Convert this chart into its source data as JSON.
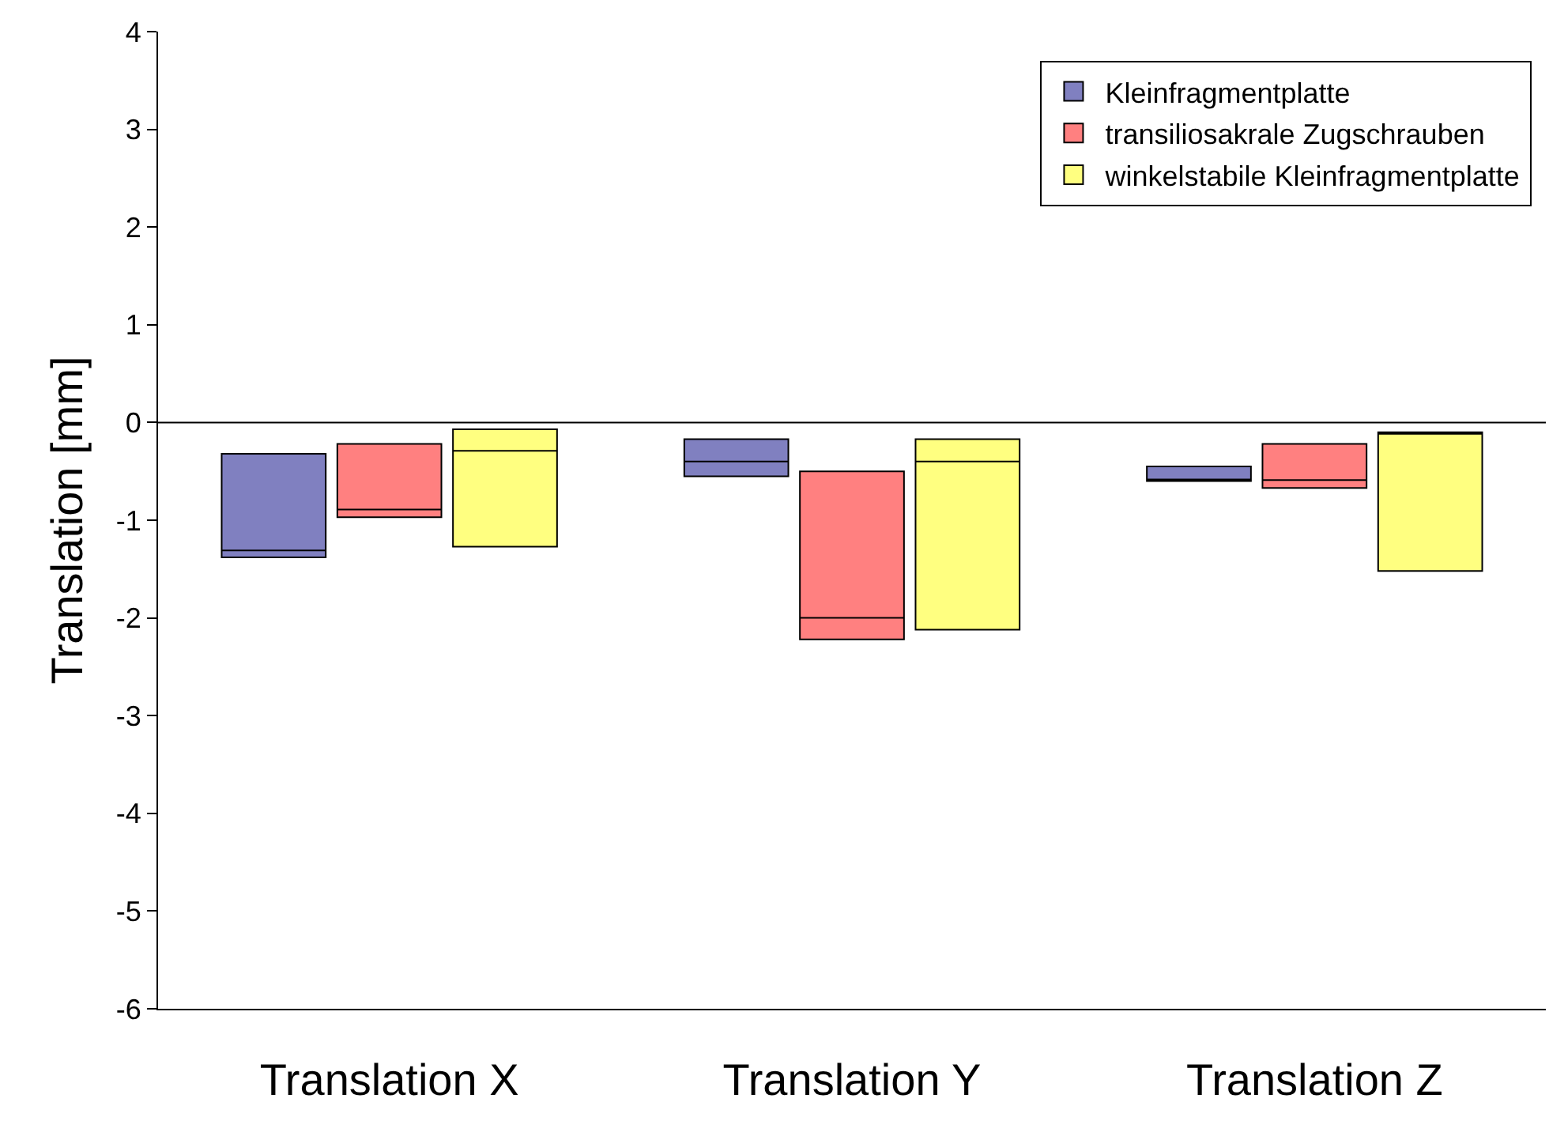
{
  "chart_data": {
    "type": "box",
    "ylabel": "Translation [mm]",
    "categories": [
      "Translation X",
      "Translation Y",
      "Translation Z"
    ],
    "series": [
      {
        "name": "Kleinfragmentplatte",
        "color": "#8080c0",
        "boxes": [
          {
            "low": -1.38,
            "q1": -1.38,
            "median": -1.31,
            "q3": -0.32,
            "high": -0.32
          },
          {
            "low": -0.55,
            "q1": -0.55,
            "median": -0.4,
            "q3": -0.17,
            "high": -0.17
          },
          {
            "low": -0.6,
            "q1": -0.6,
            "median": -0.59,
            "q3": -0.45,
            "high": -0.45
          }
        ]
      },
      {
        "name": "transiliosakrale Zugschrauben",
        "color": "#ff8080",
        "boxes": [
          {
            "low": -0.97,
            "q1": -0.97,
            "median": -0.89,
            "q3": -0.22,
            "high": -0.22
          },
          {
            "low": -2.22,
            "q1": -2.22,
            "median": -2.0,
            "q3": -0.5,
            "high": -0.5
          },
          {
            "low": -0.67,
            "q1": -0.67,
            "median": -0.59,
            "q3": -0.22,
            "high": -0.22
          }
        ]
      },
      {
        "name": "winkelstabile Kleinfragmentplatte",
        "color": "#ffff80",
        "boxes": [
          {
            "low": -1.27,
            "q1": -1.27,
            "median": -0.29,
            "q3": -0.07,
            "high": -0.07
          },
          {
            "low": -2.12,
            "q1": -2.12,
            "median": -0.4,
            "q3": -0.17,
            "high": -0.17
          },
          {
            "low": -1.52,
            "q1": -1.52,
            "median": -0.1,
            "q3": -0.1,
            "high": -0.1
          }
        ]
      }
    ],
    "ylim": [
      -6,
      4
    ],
    "yticks": [
      -6,
      -5,
      -4,
      -3,
      -2,
      -1,
      0,
      1,
      2,
      3,
      4
    ],
    "ref_lines": [
      {
        "axis": "y",
        "value": 0,
        "color": "#000000"
      }
    ],
    "grid": false,
    "legend": "top right"
  }
}
